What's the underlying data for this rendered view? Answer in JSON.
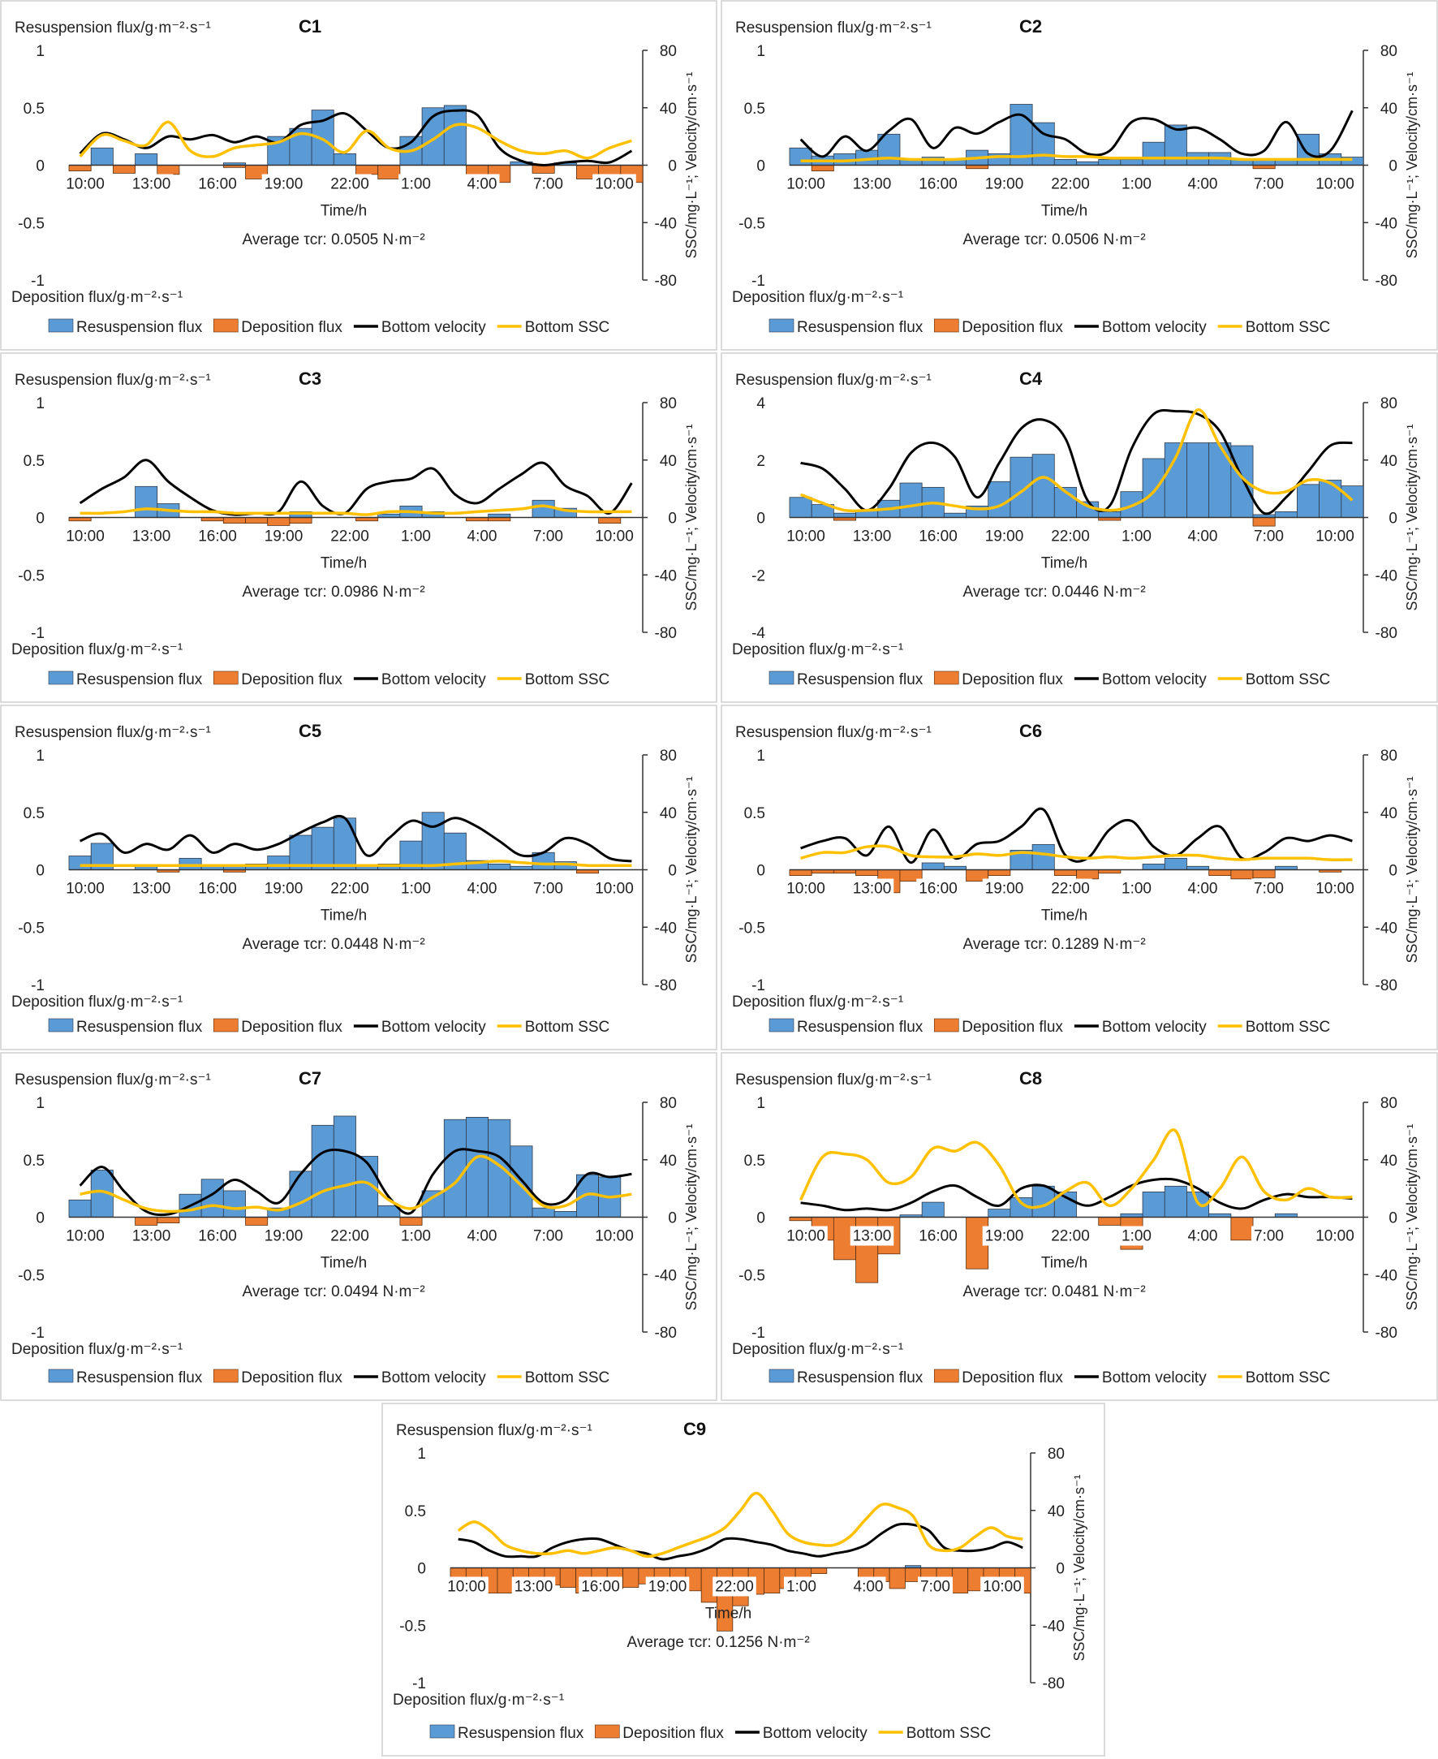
{
  "labels": {
    "resusp_axis": "Resuspension flux/g·m⁻²·s⁻¹",
    "depo_axis": "Deposition flux/g·m⁻²·s⁻¹",
    "right_axis": "SSC/mg·L⁻¹; Velocity/cm·s⁻¹",
    "xlabel": "Time/h",
    "avg_prefix": "Average τcr: ",
    "legend": [
      "Resuspension flux",
      "Deposition flux",
      "Bottom velocity",
      "Bottom SSC"
    ]
  },
  "colors": {
    "resuspension": "#5b9bd5",
    "deposition": "#ed7d31",
    "velocity": "#000000",
    "ssc": "#ffc000"
  },
  "chart_data": [
    {
      "type": "bar",
      "title": "C1",
      "xlabel": "Time/h",
      "x_ticks": [
        "10:00",
        "13:00",
        "16:00",
        "19:00",
        "22:00",
        "1:00",
        "4:00",
        "7:00",
        "10:00"
      ],
      "ylim": [
        -1,
        1
      ],
      "y_ticks": [
        1,
        0.5,
        0,
        -0.5,
        -1
      ],
      "y2lim": [
        -80,
        80
      ],
      "y2_ticks": [
        80,
        40,
        0,
        -40,
        -80
      ],
      "average_tau": "0.0505 N·m⁻²",
      "resuspension": [
        0,
        0.15,
        0,
        0.1,
        0,
        0,
        0,
        0.02,
        0,
        0.25,
        0.32,
        0.48,
        0.1,
        0,
        0,
        0.25,
        0.5,
        0.52,
        0,
        0,
        0.03,
        0,
        0.02,
        0,
        0,
        0
      ],
      "deposition": [
        -0.05,
        0,
        -0.07,
        0,
        -0.08,
        0,
        0,
        -0.02,
        -0.12,
        0,
        0,
        0,
        0,
        -0.08,
        -0.12,
        0,
        0,
        0,
        -0.12,
        -0.15,
        0,
        -0.07,
        0,
        -0.12,
        -0.15,
        -0.15
      ],
      "velocity": [
        8,
        22,
        18,
        12,
        20,
        18,
        21,
        16,
        20,
        16,
        28,
        31,
        36,
        24,
        12,
        16,
        34,
        38,
        35,
        12,
        3,
        0,
        2,
        3,
        2,
        10
      ],
      "ssc": [
        6,
        21,
        17,
        14,
        30,
        10,
        6,
        12,
        14,
        16,
        22,
        18,
        9,
        24,
        12,
        10,
        18,
        28,
        26,
        17,
        10,
        8,
        10,
        5,
        12,
        17
      ]
    },
    {
      "type": "bar",
      "title": "C2",
      "xlabel": "Time/h",
      "x_ticks": [
        "10:00",
        "13:00",
        "16:00",
        "19:00",
        "22:00",
        "1:00",
        "4:00",
        "7:00",
        "10:00"
      ],
      "ylim": [
        -1,
        1
      ],
      "y_ticks": [
        1,
        0.5,
        0,
        -0.5,
        -1
      ],
      "y2lim": [
        -80,
        80
      ],
      "y2_ticks": [
        80,
        40,
        0,
        -40,
        -80
      ],
      "average_tau": "0.0506 N·m⁻²",
      "resuspension": [
        0.15,
        0.08,
        0.1,
        0.13,
        0.27,
        0.05,
        0.07,
        0.05,
        0.13,
        0.1,
        0.53,
        0.37,
        0.05,
        0.03,
        0.05,
        0.05,
        0.2,
        0.35,
        0.11,
        0.11,
        0.05,
        0.05,
        0.05,
        0.27,
        0.1,
        0.07
      ],
      "deposition": [
        0,
        -0.05,
        0,
        0,
        0,
        0,
        0,
        0,
        -0.03,
        0,
        0,
        0,
        0,
        0,
        0,
        0,
        0,
        0,
        0,
        0,
        0,
        -0.03,
        0,
        0,
        0,
        0
      ],
      "velocity": [
        18,
        6,
        20,
        10,
        24,
        32,
        12,
        26,
        22,
        30,
        35,
        22,
        18,
        8,
        10,
        30,
        32,
        25,
        26,
        18,
        8,
        10,
        30,
        8,
        10,
        38
      ],
      "ssc": [
        3,
        3,
        3,
        4,
        5,
        4,
        4,
        4,
        5,
        6,
        6,
        7,
        6,
        6,
        5,
        5,
        5,
        5,
        5,
        5,
        4,
        4,
        4,
        4,
        4,
        4
      ]
    },
    {
      "type": "bar",
      "title": "C3",
      "xlabel": "Time/h",
      "x_ticks": [
        "10:00",
        "13:00",
        "16:00",
        "19:00",
        "22:00",
        "1:00",
        "4:00",
        "7:00",
        "10:00"
      ],
      "ylim": [
        -1,
        1
      ],
      "y_ticks": [
        1,
        0.5,
        0,
        -0.5,
        -1
      ],
      "y2lim": [
        -80,
        80
      ],
      "y2_ticks": [
        80,
        40,
        0,
        -40,
        -80
      ],
      "average_tau": "0.0986  N·m⁻²",
      "resuspension": [
        0,
        0,
        0,
        0.27,
        0.12,
        0,
        0,
        0,
        0,
        0,
        0.05,
        0,
        0,
        0,
        0.03,
        0.1,
        0.05,
        0,
        0,
        0.03,
        0,
        0.15,
        0.08,
        0,
        0,
        0
      ],
      "deposition": [
        -0.03,
        0,
        0,
        0,
        0,
        0,
        -0.03,
        -0.05,
        -0.05,
        -0.07,
        -0.05,
        0,
        0,
        -0.03,
        0,
        0,
        0,
        0,
        -0.03,
        -0.03,
        0,
        0,
        0,
        0,
        -0.05,
        0
      ],
      "velocity": [
        10,
        20,
        28,
        40,
        25,
        14,
        5,
        2,
        3,
        4,
        25,
        8,
        3,
        20,
        25,
        27,
        34,
        16,
        10,
        20,
        30,
        38,
        22,
        15,
        3,
        24
      ],
      "ssc": [
        3,
        3,
        4,
        6,
        5,
        4,
        4,
        3,
        3,
        3,
        3,
        3,
        3,
        2,
        4,
        4,
        3,
        3,
        4,
        5,
        6,
        8,
        5,
        4,
        4,
        4
      ]
    },
    {
      "type": "bar",
      "title": "C4",
      "xlabel": "Time/h",
      "x_ticks": [
        "10:00",
        "13:00",
        "16:00",
        "19:00",
        "22:00",
        "1:00",
        "4:00",
        "7:00",
        "10:00"
      ],
      "ylim": [
        -4,
        4
      ],
      "y_ticks": [
        4,
        2,
        0,
        -2,
        -4
      ],
      "y2lim": [
        -80,
        80
      ],
      "y2_ticks": [
        80,
        40,
        0,
        -40,
        -80
      ],
      "average_tau": "0.0446  N·m⁻²",
      "resuspension": [
        0.7,
        0.45,
        0.15,
        0.25,
        0.6,
        1.2,
        1.05,
        0.15,
        0.4,
        1.25,
        2.1,
        2.2,
        1.05,
        0.55,
        0.2,
        0.9,
        2.05,
        2.6,
        2.6,
        2.6,
        2.5,
        0.1,
        0.2,
        1.15,
        1.3,
        1.1
      ],
      "deposition": [
        0,
        0,
        -0.1,
        0,
        0,
        0,
        0,
        0,
        0,
        0,
        0,
        0,
        0,
        0,
        -0.1,
        0,
        0,
        0,
        0,
        0,
        0,
        -0.3,
        0,
        0,
        0,
        0
      ],
      "velocity": [
        38,
        34,
        20,
        5,
        20,
        45,
        52,
        42,
        14,
        38,
        62,
        68,
        55,
        12,
        8,
        48,
        72,
        74,
        72,
        60,
        28,
        3,
        14,
        32,
        50,
        52
      ],
      "ssc": [
        16,
        10,
        5,
        5,
        6,
        8,
        10,
        8,
        6,
        8,
        18,
        28,
        18,
        8,
        5,
        8,
        18,
        42,
        75,
        50,
        28,
        18,
        18,
        26,
        24,
        12
      ]
    },
    {
      "type": "bar",
      "title": "C5",
      "xlabel": "Time/h",
      "x_ticks": [
        "10:00",
        "13:00",
        "16:00",
        "19:00",
        "22:00",
        "1:00",
        "4:00",
        "7:00",
        "10:00"
      ],
      "ylim": [
        -1,
        1
      ],
      "y_ticks": [
        1,
        0.5,
        0,
        -0.5,
        -1
      ],
      "y2lim": [
        -80,
        80
      ],
      "y2_ticks": [
        80,
        40,
        0,
        -40,
        -80
      ],
      "average_tau": "0.0448  N·m⁻²",
      "resuspension": [
        0.12,
        0.23,
        0,
        0.03,
        0,
        0.1,
        0.03,
        0.03,
        0.05,
        0.12,
        0.3,
        0.37,
        0.45,
        0.03,
        0.05,
        0.25,
        0.5,
        0.32,
        0.08,
        0.05,
        0.03,
        0.15,
        0.07,
        0,
        0,
        0
      ],
      "deposition": [
        0,
        0,
        0,
        0,
        -0.02,
        0,
        0,
        -0.02,
        0,
        0,
        0,
        0,
        0,
        0,
        0,
        0,
        0,
        0,
        0,
        0,
        0,
        0,
        0,
        -0.03,
        0,
        0
      ],
      "velocity": [
        20,
        25,
        12,
        18,
        14,
        24,
        12,
        18,
        14,
        18,
        26,
        33,
        36,
        10,
        22,
        34,
        30,
        36,
        30,
        20,
        10,
        12,
        22,
        18,
        8,
        6
      ],
      "ssc": [
        3,
        3,
        3,
        3,
        3,
        3,
        3,
        3,
        3,
        3,
        3,
        3,
        3,
        3,
        3,
        3,
        3,
        4,
        5,
        6,
        5,
        4,
        4,
        3,
        3,
        3
      ]
    },
    {
      "type": "bar",
      "title": "C6",
      "xlabel": "Time/h",
      "x_ticks": [
        "10:00",
        "13:00",
        "16:00",
        "19:00",
        "22:00",
        "1:00",
        "4:00",
        "7:00",
        "10:00"
      ],
      "ylim": [
        -1,
        1
      ],
      "y_ticks": [
        1,
        0.5,
        0,
        -0.5,
        -1
      ],
      "y2lim": [
        -80,
        80
      ],
      "y2_ticks": [
        80,
        40,
        0,
        -40,
        -80
      ],
      "average_tau": "0.1289 N·m⁻²",
      "resuspension": [
        0,
        0,
        0,
        0,
        0,
        0,
        0.06,
        0.03,
        0,
        0,
        0.17,
        0.22,
        0,
        0,
        0,
        0,
        0.05,
        0.1,
        0.03,
        0,
        0,
        0,
        0.03,
        0,
        0,
        0
      ],
      "deposition": [
        -0.05,
        -0.03,
        -0.03,
        -0.05,
        -0.2,
        -0.1,
        0,
        0,
        -0.1,
        -0.05,
        0,
        0,
        -0.05,
        -0.08,
        -0.03,
        0,
        0,
        0,
        0,
        -0.05,
        -0.08,
        -0.07,
        0,
        0,
        -0.02,
        0
      ],
      "velocity": [
        15,
        20,
        22,
        10,
        30,
        5,
        28,
        8,
        18,
        20,
        30,
        42,
        10,
        8,
        28,
        34,
        16,
        10,
        22,
        30,
        8,
        12,
        22,
        20,
        24,
        20
      ],
      "ssc": [
        8,
        12,
        12,
        16,
        16,
        10,
        9,
        9,
        11,
        10,
        12,
        11,
        9,
        8,
        9,
        8,
        9,
        10,
        10,
        8,
        7,
        8,
        8,
        8,
        7,
        7
      ]
    },
    {
      "type": "bar",
      "title": "C7",
      "xlabel": "Time/h",
      "x_ticks": [
        "10:00",
        "13:00",
        "16:00",
        "19:00",
        "22:00",
        "1:00",
        "4:00",
        "7:00",
        "10:00"
      ],
      "ylim": [
        -1,
        1
      ],
      "y_ticks": [
        1,
        0.5,
        0,
        -0.5,
        -1
      ],
      "y2lim": [
        -80,
        80
      ],
      "y2_ticks": [
        80,
        40,
        0,
        -40,
        -80
      ],
      "average_tau": "0.0494  N·m⁻²",
      "resuspension": [
        0.15,
        0.41,
        0,
        0,
        0,
        0.2,
        0.33,
        0.23,
        0,
        0.08,
        0.4,
        0.8,
        0.88,
        0.53,
        0.1,
        0,
        0.23,
        0.85,
        0.87,
        0.85,
        0.62,
        0.08,
        0.05,
        0.37,
        0.35,
        0
      ],
      "deposition": [
        0,
        0,
        0,
        -0.07,
        -0.05,
        0,
        0,
        0,
        -0.07,
        0,
        0,
        0,
        0,
        0,
        0,
        -0.07,
        0,
        0,
        0,
        0,
        0,
        0,
        0,
        0,
        0,
        0
      ],
      "velocity": [
        22,
        35,
        18,
        4,
        2,
        8,
        16,
        26,
        18,
        10,
        30,
        45,
        46,
        38,
        14,
        3,
        30,
        46,
        46,
        42,
        26,
        10,
        12,
        30,
        28,
        30
      ],
      "ssc": [
        16,
        18,
        12,
        6,
        4,
        5,
        8,
        6,
        7,
        5,
        10,
        18,
        22,
        24,
        12,
        6,
        14,
        24,
        42,
        36,
        22,
        8,
        8,
        16,
        14,
        16
      ]
    },
    {
      "type": "bar",
      "title": "C8",
      "xlabel": "Time/h",
      "x_ticks": [
        "10:00",
        "13:00",
        "16:00",
        "19:00",
        "22:00",
        "1:00",
        "4:00",
        "7:00",
        "10:00"
      ],
      "ylim": [
        -1,
        1
      ],
      "y_ticks": [
        1,
        0.5,
        0,
        -0.5,
        -1
      ],
      "y2lim": [
        -80,
        80
      ],
      "y2_ticks": [
        80,
        40,
        0,
        -40,
        -80
      ],
      "average_tau": "0.0481  N·m⁻²",
      "resuspension": [
        0,
        0,
        0,
        0,
        0,
        0.02,
        0.13,
        0,
        0,
        0.07,
        0.17,
        0.27,
        0.22,
        0,
        0,
        0.03,
        0.22,
        0.27,
        0.22,
        0.03,
        0,
        0,
        0.03,
        0,
        0,
        0
      ],
      "deposition": [
        -0.03,
        -0.2,
        -0.37,
        -0.57,
        -0.32,
        0,
        0,
        0,
        -0.45,
        0,
        0,
        0,
        0,
        0,
        -0.07,
        -0.28,
        0,
        0,
        0,
        0,
        -0.2,
        0,
        0,
        0,
        0,
        0
      ],
      "velocity": [
        10,
        8,
        5,
        6,
        5,
        10,
        18,
        22,
        14,
        8,
        20,
        22,
        14,
        8,
        14,
        22,
        26,
        26,
        20,
        10,
        6,
        12,
        16,
        14,
        14,
        13
      ],
      "ssc": [
        12,
        42,
        44,
        40,
        24,
        28,
        48,
        46,
        52,
        36,
        10,
        8,
        18,
        24,
        8,
        20,
        40,
        60,
        10,
        20,
        42,
        18,
        12,
        20,
        14,
        14
      ]
    },
    {
      "type": "bar",
      "title": "C9",
      "xlabel": "Time/h",
      "x_ticks": [
        "10:00",
        "13:00",
        "16:00",
        "19:00",
        "22:00",
        "1:00",
        "4:00",
        "7:00",
        "10:00"
      ],
      "ylim": [
        -1,
        1
      ],
      "y_ticks": [
        1,
        0.5,
        0,
        -0.5,
        -1
      ],
      "y2lim": [
        -80,
        80
      ],
      "y2_ticks": [
        80,
        40,
        0,
        -40,
        -80
      ],
      "average_tau": "0.1256  N·m⁻²",
      "resuspension": [
        0,
        0,
        0,
        0,
        0,
        0,
        0,
        0,
        0,
        0,
        0,
        0,
        0,
        0,
        0,
        0,
        0,
        0,
        0,
        0,
        0,
        0,
        0,
        0,
        0,
        0,
        0,
        0,
        0,
        0.02,
        0,
        0,
        0,
        0,
        0,
        0,
        0
      ],
      "deposition": [
        -0.2,
        -0.2,
        -0.22,
        -0.22,
        -0.2,
        -0.18,
        -0.15,
        -0.17,
        -0.22,
        -0.22,
        -0.18,
        -0.17,
        -0.14,
        -0.2,
        -0.2,
        -0.2,
        -0.3,
        -0.55,
        -0.33,
        -0.23,
        -0.22,
        -0.18,
        -0.12,
        -0.05,
        0,
        0,
        -0.1,
        -0.12,
        -0.18,
        -0.12,
        -0.18,
        -0.22,
        -0.22,
        -0.2,
        -0.22,
        -0.22,
        -0.22
      ],
      "velocity": [
        20,
        18,
        12,
        8,
        8,
        8,
        14,
        18,
        20,
        20,
        16,
        12,
        10,
        6,
        8,
        10,
        14,
        20,
        20,
        18,
        16,
        12,
        10,
        8,
        10,
        12,
        16,
        24,
        30,
        30,
        26,
        14,
        12,
        12,
        14,
        18,
        14
      ],
      "ssc": [
        26,
        32,
        26,
        16,
        12,
        10,
        10,
        12,
        10,
        12,
        14,
        12,
        8,
        10,
        14,
        18,
        22,
        28,
        40,
        52,
        40,
        24,
        18,
        16,
        16,
        22,
        34,
        44,
        42,
        36,
        16,
        12,
        14,
        22,
        28,
        22,
        20
      ]
    }
  ]
}
